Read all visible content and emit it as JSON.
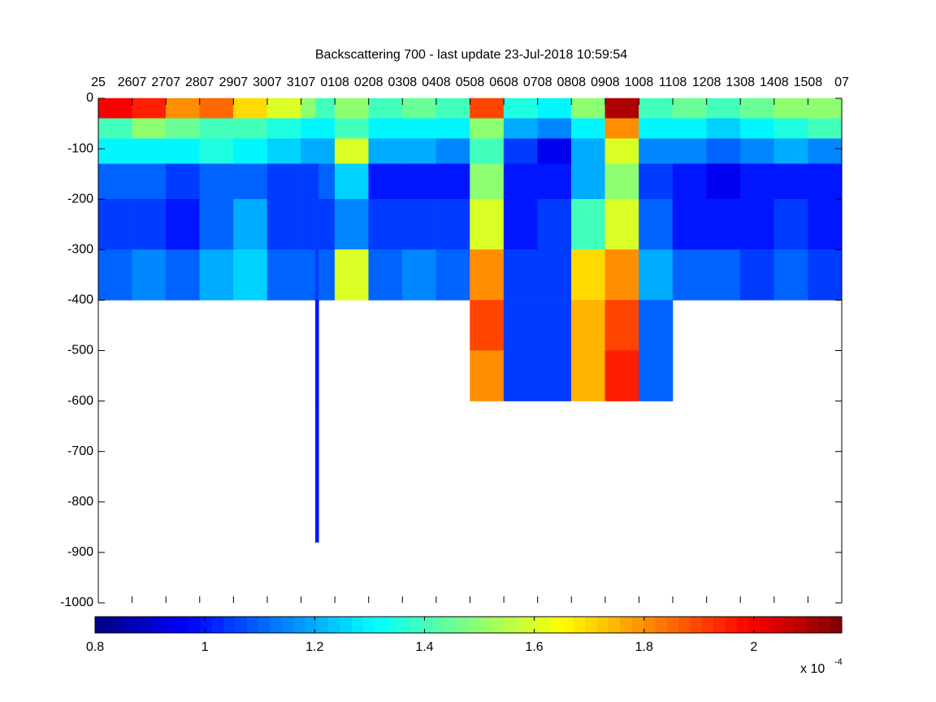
{
  "chart_data": {
    "type": "heatmap",
    "title": "Backscattering 700 - last update 23-Jul-2018 10:59:54",
    "colormap": "jet",
    "clim": [
      0.8,
      2.16
    ],
    "cticks": [
      0.8,
      1,
      1.2,
      1.4,
      1.6,
      1.8,
      2
    ],
    "colorbar_multiplier": "x 10",
    "colorbar_exponent": "-4",
    "xlim": [
      0,
      44
    ],
    "xticks": [
      {
        "value": 0,
        "label": "25"
      },
      {
        "value": 2,
        "label": "2607"
      },
      {
        "value": 4,
        "label": "2707"
      },
      {
        "value": 6,
        "label": "2807"
      },
      {
        "value": 8,
        "label": "2907"
      },
      {
        "value": 10,
        "label": "3007"
      },
      {
        "value": 12,
        "label": "3107"
      },
      {
        "value": 14,
        "label": "0108"
      },
      {
        "value": 16,
        "label": "0208"
      },
      {
        "value": 18,
        "label": "0308"
      },
      {
        "value": 20,
        "label": "0408"
      },
      {
        "value": 22,
        "label": "0508"
      },
      {
        "value": 24,
        "label": "0608"
      },
      {
        "value": 26,
        "label": "0708"
      },
      {
        "value": 28,
        "label": "0808"
      },
      {
        "value": 30,
        "label": "0908"
      },
      {
        "value": 32,
        "label": "1008"
      },
      {
        "value": 34,
        "label": "1108"
      },
      {
        "value": 36,
        "label": "1208"
      },
      {
        "value": 38,
        "label": "1308"
      },
      {
        "value": 40,
        "label": "1408"
      },
      {
        "value": 42,
        "label": "1508"
      },
      {
        "value": 44,
        "label": "07"
      }
    ],
    "ylim": [
      -1000,
      0
    ],
    "yticks": [
      0,
      -100,
      -200,
      -300,
      -400,
      -500,
      -600,
      -700,
      -800,
      -900,
      -1000
    ],
    "x_edges": [
      0,
      2,
      4,
      6,
      8,
      10,
      12,
      12.85,
      13.05,
      14,
      16,
      18,
      20,
      22,
      24,
      26,
      28,
      30,
      32,
      34,
      36,
      38,
      40,
      42,
      44
    ],
    "y_edges": [
      0,
      -40,
      -80,
      -130,
      -200,
      -300,
      -400,
      -500,
      -600,
      -880
    ],
    "values": [
      [
        2.0,
        1.4,
        1.3,
        1.1,
        1.05,
        1.1,
        null,
        null,
        null
      ],
      [
        1.95,
        1.5,
        1.3,
        1.1,
        1.05,
        1.15,
        null,
        null,
        null
      ],
      [
        1.8,
        1.45,
        1.3,
        1.05,
        1.0,
        1.1,
        null,
        null,
        null
      ],
      [
        1.85,
        1.4,
        1.35,
        1.1,
        1.1,
        1.2,
        null,
        null,
        null
      ],
      [
        1.7,
        1.4,
        1.3,
        1.1,
        1.2,
        1.25,
        null,
        null,
        null
      ],
      [
        1.6,
        1.35,
        1.25,
        1.05,
        1.05,
        1.1,
        null,
        null,
        null
      ],
      [
        1.5,
        1.3,
        1.2,
        1.05,
        1.05,
        1.1,
        null,
        null,
        null
      ],
      [
        1.4,
        1.3,
        1.2,
        1.05,
        1.05,
        1.05,
        1.0,
        1.0,
        1.0
      ],
      [
        1.4,
        1.3,
        1.2,
        1.1,
        1.05,
        1.1,
        null,
        null,
        null
      ],
      [
        1.5,
        1.4,
        1.6,
        1.25,
        1.15,
        1.6,
        null,
        null,
        null
      ],
      [
        1.4,
        1.3,
        1.2,
        1.0,
        1.05,
        1.1,
        null,
        null,
        null
      ],
      [
        1.45,
        1.3,
        1.2,
        1.0,
        1.05,
        1.15,
        null,
        null,
        null
      ],
      [
        1.4,
        1.3,
        1.15,
        1.0,
        1.05,
        1.1,
        null,
        null,
        null
      ],
      [
        1.9,
        1.5,
        1.4,
        1.5,
        1.6,
        1.8,
        1.9,
        1.8,
        null
      ],
      [
        1.35,
        1.2,
        1.05,
        1.0,
        1.0,
        1.05,
        1.05,
        1.05,
        null
      ],
      [
        1.3,
        1.15,
        0.95,
        1.0,
        1.05,
        1.05,
        1.05,
        1.05,
        null
      ],
      [
        1.5,
        1.3,
        1.2,
        1.2,
        1.4,
        1.7,
        1.75,
        1.75,
        null
      ],
      [
        2.1,
        1.8,
        1.6,
        1.5,
        1.6,
        1.8,
        1.9,
        1.95,
        null
      ],
      [
        1.4,
        1.3,
        1.15,
        1.05,
        1.1,
        1.2,
        1.1,
        1.1,
        null
      ],
      [
        1.45,
        1.3,
        1.15,
        1.0,
        1.0,
        1.1,
        null,
        null,
        null
      ],
      [
        1.4,
        1.25,
        1.1,
        0.95,
        1.0,
        1.1,
        null,
        null,
        null
      ],
      [
        1.45,
        1.3,
        1.15,
        1.0,
        1.0,
        1.05,
        null,
        null,
        null
      ],
      [
        1.5,
        1.35,
        1.2,
        1.0,
        1.05,
        1.1,
        null,
        null,
        null
      ],
      [
        1.5,
        1.4,
        1.15,
        1.0,
        1.0,
        1.05,
        null,
        null,
        null
      ]
    ]
  }
}
